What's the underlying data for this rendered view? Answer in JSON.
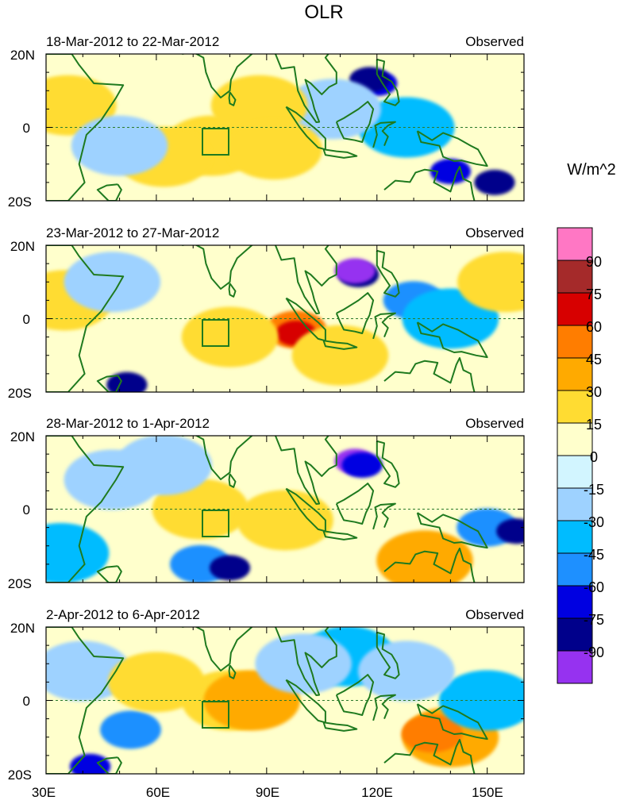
{
  "title": "OLR",
  "colorbar": {
    "unit_label": "W/m^2",
    "levels": [
      "90",
      "75",
      "60",
      "45",
      "30",
      "15",
      "0",
      "-15",
      "-30",
      "-45",
      "-60",
      "-75",
      "-90"
    ],
    "colors": [
      "#ff77c4",
      "#a52a2a",
      "#d70000",
      "#ff7d00",
      "#ffaa00",
      "#ffdc32",
      "#ffffcc",
      "#d2f5ff",
      "#9ed2ff",
      "#00bcff",
      "#1e90ff",
      "#0000e1",
      "#00008b",
      "#9632f0"
    ]
  },
  "panels": [
    {
      "date_range": "18-Mar-2012 to 22-Mar-2012",
      "label_right": "Observed"
    },
    {
      "date_range": "23-Mar-2012 to 27-Mar-2012",
      "label_right": "Observed"
    },
    {
      "date_range": "28-Mar-2012 to 1-Apr-2012",
      "label_right": "Observed"
    },
    {
      "date_range": "2-Apr-2012 to 6-Apr-2012",
      "label_right": "Observed"
    }
  ],
  "lat_labels": [
    "20N",
    "0",
    "20S"
  ],
  "lon_labels": [
    "30E",
    "60E",
    "90E",
    "120E",
    "150E"
  ],
  "map_extent": {
    "lon": [
      30,
      160
    ],
    "lat": [
      -20,
      20
    ]
  },
  "fields": [
    [
      {
        "lon": 120,
        "lat": 12,
        "level": "-60"
      },
      {
        "lon": 118,
        "lat": 13,
        "level": "-75"
      },
      {
        "lon": 140,
        "lat": -12,
        "level": "-60"
      },
      {
        "lon": 152,
        "lat": -15,
        "level": "-75"
      },
      {
        "lon": 128,
        "lat": 0,
        "level": "-30"
      },
      {
        "lon": 108,
        "lat": 5,
        "level": "-15"
      },
      {
        "lon": 75,
        "lat": -5,
        "level": "15"
      },
      {
        "lon": 62,
        "lat": -8,
        "level": "15"
      },
      {
        "lon": 88,
        "lat": 6,
        "level": "15"
      },
      {
        "lon": 92,
        "lat": -6,
        "level": "15"
      },
      {
        "lon": 36,
        "lat": 6,
        "level": "15"
      },
      {
        "lon": 50,
        "lat": -5,
        "level": "-15"
      }
    ],
    [
      {
        "lon": 115,
        "lat": 12,
        "level": "-75"
      },
      {
        "lon": 114,
        "lat": 13,
        "level": "-90"
      },
      {
        "lon": 130,
        "lat": 5,
        "level": "-45"
      },
      {
        "lon": 140,
        "lat": 0,
        "level": "-30"
      },
      {
        "lon": 98,
        "lat": -3,
        "level": "45"
      },
      {
        "lon": 98,
        "lat": -4,
        "level": "60"
      },
      {
        "lon": 80,
        "lat": -5,
        "level": "15"
      },
      {
        "lon": 110,
        "lat": -10,
        "level": "15"
      },
      {
        "lon": 52,
        "lat": -18,
        "level": "-75"
      },
      {
        "lon": 155,
        "lat": 10,
        "level": "15"
      },
      {
        "lon": 35,
        "lat": 5,
        "level": "15"
      },
      {
        "lon": 48,
        "lat": 10,
        "level": "-15"
      }
    ],
    [
      {
        "lon": 114,
        "lat": 13,
        "level": "-90"
      },
      {
        "lon": 116,
        "lat": 12,
        "level": "-60"
      },
      {
        "lon": 150,
        "lat": -5,
        "level": "-45"
      },
      {
        "lon": 158,
        "lat": -6,
        "level": "-75"
      },
      {
        "lon": 72,
        "lat": 0,
        "level": "15"
      },
      {
        "lon": 95,
        "lat": -3,
        "level": "15"
      },
      {
        "lon": 133,
        "lat": -14,
        "level": "30"
      },
      {
        "lon": 72,
        "lat": -15,
        "level": "-45"
      },
      {
        "lon": 80,
        "lat": -16,
        "level": "-75"
      },
      {
        "lon": 34,
        "lat": -12,
        "level": "-30"
      },
      {
        "lon": 48,
        "lat": 8,
        "level": "-15"
      },
      {
        "lon": 62,
        "lat": 12,
        "level": "-15"
      }
    ],
    [
      {
        "lon": 140,
        "lat": -10,
        "level": "30"
      },
      {
        "lon": 135,
        "lat": -9,
        "level": "45"
      },
      {
        "lon": 80,
        "lat": 0,
        "level": "15"
      },
      {
        "lon": 86,
        "lat": 0,
        "level": "30"
      },
      {
        "lon": 112,
        "lat": 12,
        "level": "-30"
      },
      {
        "lon": 150,
        "lat": 0,
        "level": "-30"
      },
      {
        "lon": 53,
        "lat": -8,
        "level": "-45"
      },
      {
        "lon": 42,
        "lat": -18,
        "level": "-60"
      },
      {
        "lon": 40,
        "lat": 8,
        "level": "-15"
      },
      {
        "lon": 60,
        "lat": 5,
        "level": "15"
      },
      {
        "lon": 100,
        "lat": 10,
        "level": "-15"
      },
      {
        "lon": 128,
        "lat": 8,
        "level": "-15"
      }
    ]
  ]
}
